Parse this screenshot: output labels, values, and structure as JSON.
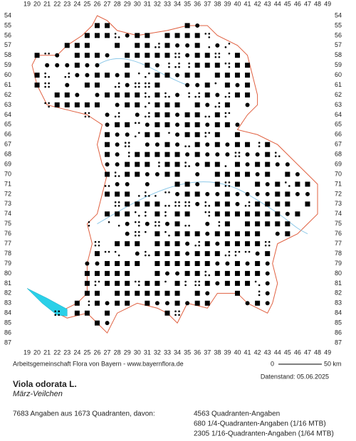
{
  "grid": {
    "columns": [
      19,
      20,
      21,
      22,
      23,
      24,
      25,
      26,
      27,
      28,
      29,
      30,
      31,
      32,
      33,
      34,
      35,
      36,
      37,
      38,
      39,
      40,
      41,
      42,
      43,
      44,
      45,
      46,
      47,
      48,
      49
    ],
    "rows": [
      54,
      55,
      56,
      57,
      58,
      59,
      60,
      61,
      62,
      63,
      64,
      65,
      66,
      67,
      68,
      69,
      70,
      71,
      72,
      73,
      74,
      75,
      76,
      77,
      78,
      79,
      80,
      81,
      82,
      83,
      84,
      85,
      86,
      87
    ]
  },
  "footer": {
    "credit": "Arbeitsgemeinschaft Flora von Bayern - www.bayernflora.de",
    "scale_start": "0",
    "scale_end": "50 km",
    "date": "Datenstand: 05.06.2025"
  },
  "species": {
    "name": "Viola odorata L.",
    "common_name": "März-Veilchen"
  },
  "summary": {
    "total": "7683 Angaben aus 1673 Quadranten, davon:",
    "lines": [
      "4563 Quadranten-Angaben",
      "680 1/4-Quadranten-Angaben (1/16 MTB)",
      "2305 1/16-Quadranten-Angaben (1/64 MTB)"
    ]
  }
}
